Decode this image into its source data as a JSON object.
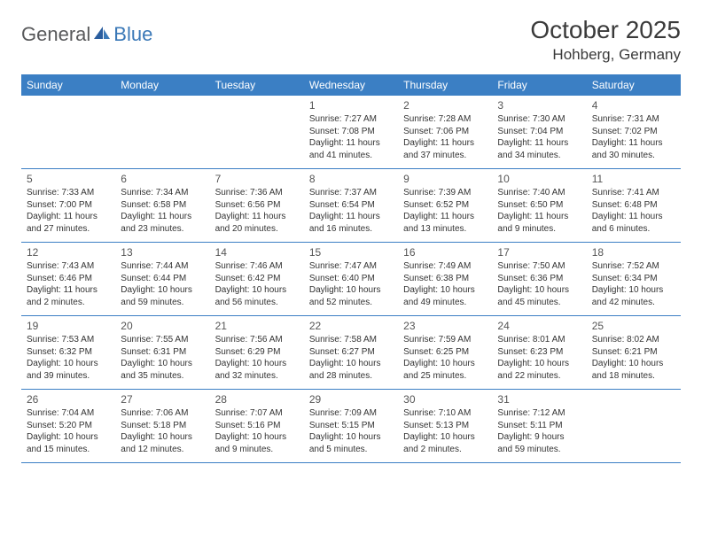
{
  "logo": {
    "general": "General",
    "blue": "Blue"
  },
  "title": "October 2025",
  "location": "Hohberg, Germany",
  "weekdays": [
    "Sunday",
    "Monday",
    "Tuesday",
    "Wednesday",
    "Thursday",
    "Friday",
    "Saturday"
  ],
  "colors": {
    "header_bg": "#3b7fc4",
    "header_text": "#ffffff",
    "row_border": "#3b7fc4",
    "body_text": "#333333",
    "logo_gray": "#58595b",
    "logo_blue": "#3a78b7"
  },
  "rows": [
    [
      {
        "day": "",
        "sunrise": "",
        "sunset": "",
        "daylight": ""
      },
      {
        "day": "",
        "sunrise": "",
        "sunset": "",
        "daylight": ""
      },
      {
        "day": "",
        "sunrise": "",
        "sunset": "",
        "daylight": ""
      },
      {
        "day": "1",
        "sunrise": "Sunrise: 7:27 AM",
        "sunset": "Sunset: 7:08 PM",
        "daylight": "Daylight: 11 hours and 41 minutes."
      },
      {
        "day": "2",
        "sunrise": "Sunrise: 7:28 AM",
        "sunset": "Sunset: 7:06 PM",
        "daylight": "Daylight: 11 hours and 37 minutes."
      },
      {
        "day": "3",
        "sunrise": "Sunrise: 7:30 AM",
        "sunset": "Sunset: 7:04 PM",
        "daylight": "Daylight: 11 hours and 34 minutes."
      },
      {
        "day": "4",
        "sunrise": "Sunrise: 7:31 AM",
        "sunset": "Sunset: 7:02 PM",
        "daylight": "Daylight: 11 hours and 30 minutes."
      }
    ],
    [
      {
        "day": "5",
        "sunrise": "Sunrise: 7:33 AM",
        "sunset": "Sunset: 7:00 PM",
        "daylight": "Daylight: 11 hours and 27 minutes."
      },
      {
        "day": "6",
        "sunrise": "Sunrise: 7:34 AM",
        "sunset": "Sunset: 6:58 PM",
        "daylight": "Daylight: 11 hours and 23 minutes."
      },
      {
        "day": "7",
        "sunrise": "Sunrise: 7:36 AM",
        "sunset": "Sunset: 6:56 PM",
        "daylight": "Daylight: 11 hours and 20 minutes."
      },
      {
        "day": "8",
        "sunrise": "Sunrise: 7:37 AM",
        "sunset": "Sunset: 6:54 PM",
        "daylight": "Daylight: 11 hours and 16 minutes."
      },
      {
        "day": "9",
        "sunrise": "Sunrise: 7:39 AM",
        "sunset": "Sunset: 6:52 PM",
        "daylight": "Daylight: 11 hours and 13 minutes."
      },
      {
        "day": "10",
        "sunrise": "Sunrise: 7:40 AM",
        "sunset": "Sunset: 6:50 PM",
        "daylight": "Daylight: 11 hours and 9 minutes."
      },
      {
        "day": "11",
        "sunrise": "Sunrise: 7:41 AM",
        "sunset": "Sunset: 6:48 PM",
        "daylight": "Daylight: 11 hours and 6 minutes."
      }
    ],
    [
      {
        "day": "12",
        "sunrise": "Sunrise: 7:43 AM",
        "sunset": "Sunset: 6:46 PM",
        "daylight": "Daylight: 11 hours and 2 minutes."
      },
      {
        "day": "13",
        "sunrise": "Sunrise: 7:44 AM",
        "sunset": "Sunset: 6:44 PM",
        "daylight": "Daylight: 10 hours and 59 minutes."
      },
      {
        "day": "14",
        "sunrise": "Sunrise: 7:46 AM",
        "sunset": "Sunset: 6:42 PM",
        "daylight": "Daylight: 10 hours and 56 minutes."
      },
      {
        "day": "15",
        "sunrise": "Sunrise: 7:47 AM",
        "sunset": "Sunset: 6:40 PM",
        "daylight": "Daylight: 10 hours and 52 minutes."
      },
      {
        "day": "16",
        "sunrise": "Sunrise: 7:49 AM",
        "sunset": "Sunset: 6:38 PM",
        "daylight": "Daylight: 10 hours and 49 minutes."
      },
      {
        "day": "17",
        "sunrise": "Sunrise: 7:50 AM",
        "sunset": "Sunset: 6:36 PM",
        "daylight": "Daylight: 10 hours and 45 minutes."
      },
      {
        "day": "18",
        "sunrise": "Sunrise: 7:52 AM",
        "sunset": "Sunset: 6:34 PM",
        "daylight": "Daylight: 10 hours and 42 minutes."
      }
    ],
    [
      {
        "day": "19",
        "sunrise": "Sunrise: 7:53 AM",
        "sunset": "Sunset: 6:32 PM",
        "daylight": "Daylight: 10 hours and 39 minutes."
      },
      {
        "day": "20",
        "sunrise": "Sunrise: 7:55 AM",
        "sunset": "Sunset: 6:31 PM",
        "daylight": "Daylight: 10 hours and 35 minutes."
      },
      {
        "day": "21",
        "sunrise": "Sunrise: 7:56 AM",
        "sunset": "Sunset: 6:29 PM",
        "daylight": "Daylight: 10 hours and 32 minutes."
      },
      {
        "day": "22",
        "sunrise": "Sunrise: 7:58 AM",
        "sunset": "Sunset: 6:27 PM",
        "daylight": "Daylight: 10 hours and 28 minutes."
      },
      {
        "day": "23",
        "sunrise": "Sunrise: 7:59 AM",
        "sunset": "Sunset: 6:25 PM",
        "daylight": "Daylight: 10 hours and 25 minutes."
      },
      {
        "day": "24",
        "sunrise": "Sunrise: 8:01 AM",
        "sunset": "Sunset: 6:23 PM",
        "daylight": "Daylight: 10 hours and 22 minutes."
      },
      {
        "day": "25",
        "sunrise": "Sunrise: 8:02 AM",
        "sunset": "Sunset: 6:21 PM",
        "daylight": "Daylight: 10 hours and 18 minutes."
      }
    ],
    [
      {
        "day": "26",
        "sunrise": "Sunrise: 7:04 AM",
        "sunset": "Sunset: 5:20 PM",
        "daylight": "Daylight: 10 hours and 15 minutes."
      },
      {
        "day": "27",
        "sunrise": "Sunrise: 7:06 AM",
        "sunset": "Sunset: 5:18 PM",
        "daylight": "Daylight: 10 hours and 12 minutes."
      },
      {
        "day": "28",
        "sunrise": "Sunrise: 7:07 AM",
        "sunset": "Sunset: 5:16 PM",
        "daylight": "Daylight: 10 hours and 9 minutes."
      },
      {
        "day": "29",
        "sunrise": "Sunrise: 7:09 AM",
        "sunset": "Sunset: 5:15 PM",
        "daylight": "Daylight: 10 hours and 5 minutes."
      },
      {
        "day": "30",
        "sunrise": "Sunrise: 7:10 AM",
        "sunset": "Sunset: 5:13 PM",
        "daylight": "Daylight: 10 hours and 2 minutes."
      },
      {
        "day": "31",
        "sunrise": "Sunrise: 7:12 AM",
        "sunset": "Sunset: 5:11 PM",
        "daylight": "Daylight: 9 hours and 59 minutes."
      },
      {
        "day": "",
        "sunrise": "",
        "sunset": "",
        "daylight": ""
      }
    ]
  ]
}
